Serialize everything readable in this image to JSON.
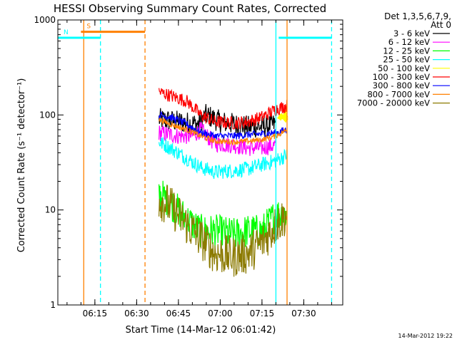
{
  "chart_data": {
    "type": "line",
    "title": "HESSI Observing Summary Count Rates, Corrected",
    "xlabel": "Start Time (14-Mar-12 06:01:42)",
    "ylabel": "Corrected Count Rate (s⁻¹ detector⁻¹)",
    "x_start": "06:01:42",
    "xlim": [
      "06:01:42",
      "07:44:00"
    ],
    "x_ticks": [
      "06:15",
      "06:30",
      "06:45",
      "07:00",
      "07:15",
      "07:30"
    ],
    "y_scale": "log",
    "ylim": [
      1,
      1000
    ],
    "y_ticks": [
      "1",
      "10",
      "100",
      "1000"
    ],
    "legend": {
      "header_line1": "Det 1,3,5,6,7,9,",
      "header_line2": "Att 0",
      "placement": "right"
    },
    "series": [
      {
        "name": "3 - 6 keV",
        "color": "#000000",
        "x": [
          "06:38",
          "06:45",
          "06:52",
          "06:55",
          "07:00",
          "07:05",
          "07:10",
          "07:15",
          "07:20"
        ],
        "values": [
          90,
          85,
          80,
          100,
          85,
          80,
          75,
          75,
          80
        ]
      },
      {
        "name": "6 - 12 keV",
        "color": "#ff00ff",
        "x": [
          "06:38",
          "06:45",
          "06:50",
          "06:53",
          "06:58",
          "07:05",
          "07:10",
          "07:15",
          "07:20"
        ],
        "values": [
          65,
          60,
          60,
          70,
          50,
          48,
          45,
          45,
          48
        ]
      },
      {
        "name": "12 - 25 keV",
        "color": "#00ff00",
        "x": [
          "06:38",
          "06:42",
          "06:48",
          "06:53",
          "06:58",
          "07:05",
          "07:10",
          "07:15",
          "07:20",
          "07:24"
        ],
        "values": [
          15,
          12,
          8,
          6,
          6,
          5.5,
          6,
          6,
          9,
          9
        ]
      },
      {
        "name": "25 - 50 keV",
        "color": "#00ffff",
        "x": [
          "06:38",
          "06:42",
          "06:48",
          "06:53",
          "06:58",
          "07:05",
          "07:10",
          "07:15",
          "07:20",
          "07:24"
        ],
        "values": [
          52,
          45,
          35,
          28,
          25,
          26,
          27,
          30,
          33,
          38
        ]
      },
      {
        "name": "50 - 100 keV",
        "color": "#ffff00",
        "x": [
          "07:21",
          "07:24"
        ],
        "values": [
          95,
          95
        ]
      },
      {
        "name": "100 - 300 keV",
        "color": "#ff0000",
        "x": [
          "06:38",
          "06:42",
          "06:48",
          "06:53",
          "06:58",
          "07:05",
          "07:10",
          "07:15",
          "07:20",
          "07:24"
        ],
        "values": [
          175,
          160,
          140,
          100,
          85,
          82,
          85,
          95,
          115,
          125
        ]
      },
      {
        "name": "300 - 800 keV",
        "color": "#0000ff",
        "x": [
          "06:38",
          "06:42",
          "06:48",
          "06:53",
          "06:58",
          "07:05",
          "07:10",
          "07:15",
          "07:20",
          "07:24"
        ],
        "values": [
          100,
          95,
          80,
          65,
          60,
          60,
          62,
          63,
          65,
          70
        ]
      },
      {
        "name": "800 - 7000 keV",
        "color": "#ff8000",
        "x": [
          "06:38",
          "06:42",
          "06:48",
          "06:53",
          "06:58",
          "07:05",
          "07:10",
          "07:15",
          "07:20",
          "07:24"
        ],
        "values": [
          90,
          80,
          70,
          60,
          53,
          52,
          53,
          55,
          60,
          70
        ]
      },
      {
        "name": "7000 - 20000 keV",
        "color": "#8b7a00",
        "x": [
          "06:38",
          "06:42",
          "06:48",
          "06:53",
          "06:58",
          "07:05",
          "07:10",
          "07:15",
          "07:20",
          "07:24"
        ],
        "values": [
          13,
          11,
          7,
          5,
          3.5,
          3.2,
          3.5,
          4.5,
          7,
          9
        ]
      }
    ],
    "flags": [
      {
        "label": "S",
        "color": "#ff8000",
        "x_start": "06:10",
        "x_end": "06:33",
        "level": 750
      },
      {
        "label": "N",
        "color": "#00ffff",
        "x_start": "06:01:42",
        "x_end": "06:17",
        "level": 650
      },
      {
        "label": "",
        "color": "#00ffff",
        "x_start": "07:21",
        "x_end": "07:40",
        "level": 650
      }
    ],
    "vertical_lines": [
      {
        "x": "06:11",
        "color": "#ff8000",
        "style": "solid"
      },
      {
        "x": "06:17",
        "color": "#00ffff",
        "style": "dashed"
      },
      {
        "x": "06:33",
        "color": "#ff8000",
        "style": "dashed"
      },
      {
        "x": "07:20",
        "color": "#00ffff",
        "style": "solid"
      },
      {
        "x": "07:24",
        "color": "#ff8000",
        "style": "solid"
      },
      {
        "x": "07:40",
        "color": "#00ffff",
        "style": "dashed"
      }
    ]
  },
  "footer": {
    "date": "14-Mar-2012 19:22"
  }
}
